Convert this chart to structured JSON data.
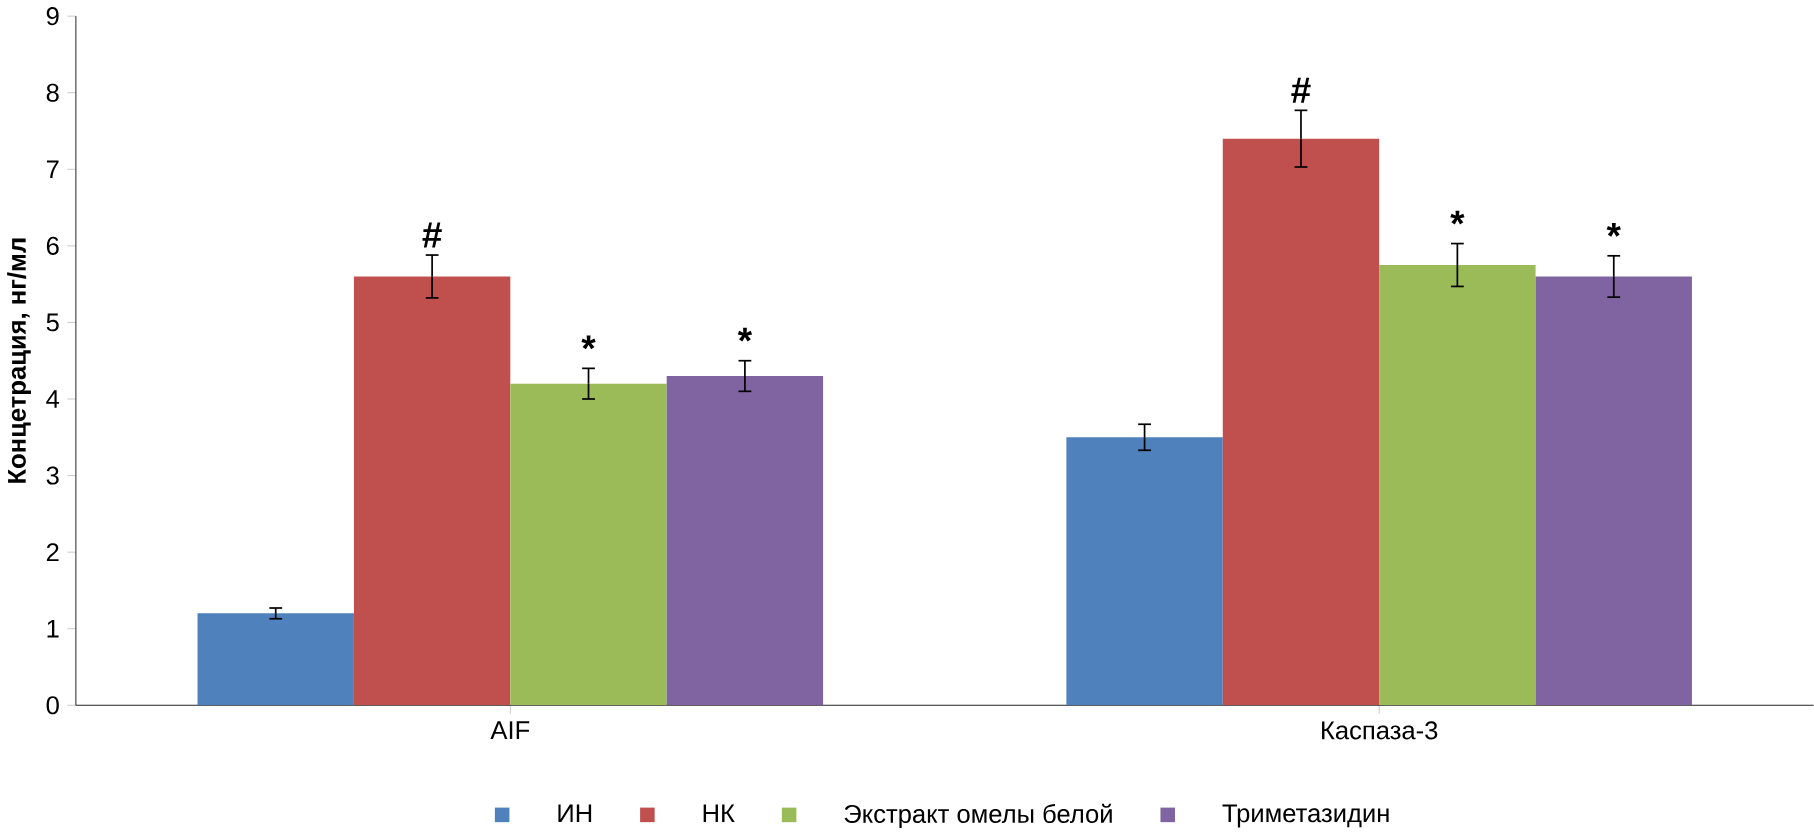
{
  "chart_data": {
    "type": "bar",
    "ylabel": "Концетрация, нг/мл",
    "categories": [
      "AIF",
      "Каспаза-3"
    ],
    "series": [
      {
        "name": "ИН",
        "color": "#4f81bd",
        "values": [
          1.2,
          3.5
        ],
        "errors": [
          0.07,
          0.17
        ]
      },
      {
        "name": "НК",
        "color": "#c0504d",
        "values": [
          5.6,
          7.4
        ],
        "errors": [
          0.28,
          0.37
        ],
        "value_labels": [
          "#",
          "#"
        ]
      },
      {
        "name": "Экстракт омелы белой",
        "color": "#9bbb59",
        "values": [
          4.2,
          5.75
        ],
        "errors": [
          0.2,
          0.28
        ],
        "value_labels": [
          "*",
          "*"
        ]
      },
      {
        "name": "Триметазидин",
        "color": "#8064a2",
        "values": [
          4.3,
          5.6
        ],
        "errors": [
          0.2,
          0.27
        ],
        "value_labels": [
          "*",
          "*"
        ]
      }
    ],
    "ylim": [
      0,
      9
    ],
    "yticks": [
      0,
      1,
      2,
      3,
      4,
      5,
      6,
      7,
      8,
      9
    ],
    "legend": "bottom"
  }
}
